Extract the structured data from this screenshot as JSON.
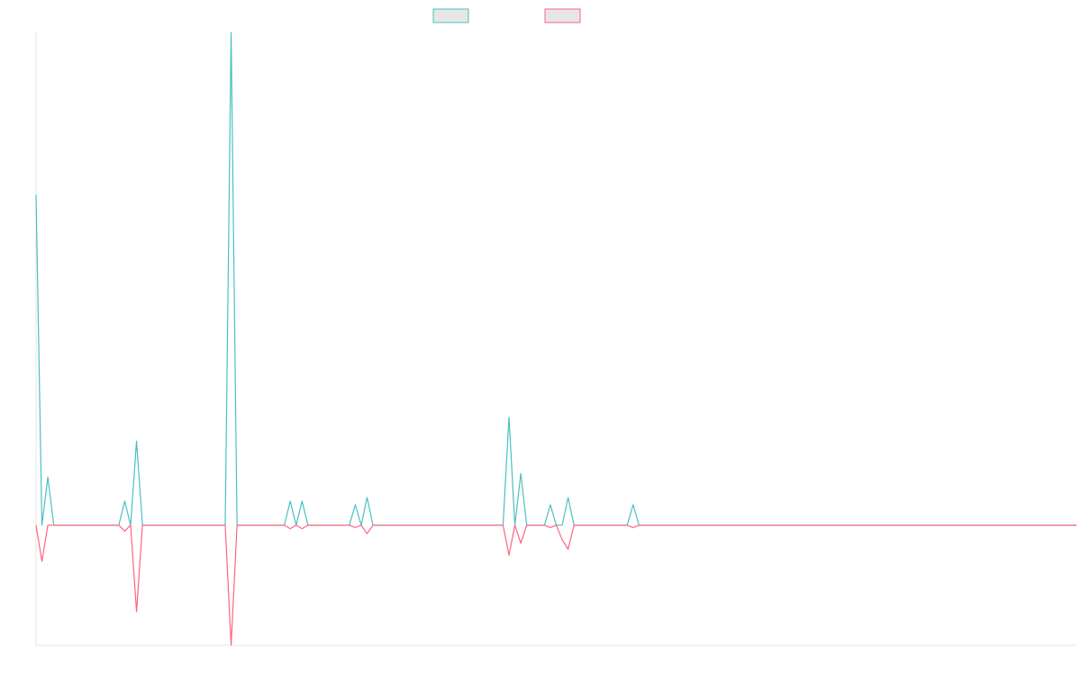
{
  "chart_data": {
    "type": "line",
    "title": "",
    "xlabel": "",
    "ylabel": "",
    "grid": false,
    "legend_position": "top-center",
    "xlim": [
      0,
      176
    ],
    "ylim": [
      -1.0,
      4.1
    ],
    "series": [
      {
        "color": "#4bc0c0",
        "fill": "#e6e6e6",
        "values": [
          2.75,
          0,
          0.4,
          0,
          0,
          0,
          0,
          0,
          0,
          0,
          0,
          0,
          0,
          0,
          0,
          0.2,
          0,
          0.7,
          0,
          0,
          0,
          0,
          0,
          0,
          0,
          0,
          0,
          0,
          0,
          0,
          0,
          0,
          0,
          4.1,
          0,
          0,
          0,
          0,
          0,
          0,
          0,
          0,
          0,
          0.2,
          0,
          0.2,
          0,
          0,
          0,
          0,
          0,
          0,
          0,
          0,
          0.17,
          0,
          0.23,
          0,
          0,
          0,
          0,
          0,
          0,
          0,
          0,
          0,
          0,
          0,
          0,
          0,
          0,
          0,
          0,
          0,
          0,
          0,
          0,
          0,
          0,
          0,
          0.9,
          0,
          0.43,
          0,
          0,
          0,
          0,
          0.17,
          0,
          0,
          0.23,
          0,
          0,
          0,
          0,
          0,
          0,
          0,
          0,
          0,
          0,
          0.17,
          0,
          0,
          0,
          0,
          0,
          0,
          0,
          0,
          0,
          0,
          0,
          0,
          0,
          0,
          0,
          0,
          0,
          0,
          0,
          0,
          0,
          0,
          0,
          0,
          0,
          0,
          0,
          0,
          0,
          0,
          0,
          0,
          0,
          0,
          0,
          0,
          0,
          0,
          0,
          0,
          0,
          0,
          0,
          0,
          0,
          0,
          0,
          0,
          0,
          0,
          0,
          0,
          0,
          0,
          0,
          0,
          0,
          0,
          0,
          0,
          0,
          0,
          0,
          0,
          0,
          0,
          0,
          0,
          0,
          0,
          0,
          0,
          0,
          0,
          0
        ]
      },
      {
        "color": "#ff6384",
        "fill": "#e6e6e6",
        "values": [
          0,
          -0.3,
          0,
          0,
          0,
          0,
          0,
          0,
          0,
          0,
          0,
          0,
          0,
          0,
          0,
          -0.05,
          0,
          -0.72,
          0,
          0,
          0,
          0,
          0,
          0,
          0,
          0,
          0,
          0,
          0,
          0,
          0,
          0,
          0,
          -1.0,
          0,
          0,
          0,
          0,
          0,
          0,
          0,
          0,
          0,
          -0.03,
          0,
          -0.03,
          0,
          0,
          0,
          0,
          0,
          0,
          0,
          0,
          -0.02,
          0,
          -0.07,
          0,
          0,
          0,
          0,
          0,
          0,
          0,
          0,
          0,
          0,
          0,
          0,
          0,
          0,
          0,
          0,
          0,
          0,
          0,
          0,
          0,
          0,
          0,
          -0.25,
          0,
          -0.15,
          0,
          0,
          0,
          0,
          -0.02,
          0,
          -0.12,
          -0.2,
          0,
          0,
          0,
          0,
          0,
          0,
          0,
          0,
          0,
          0,
          -0.02,
          0,
          0,
          0,
          0,
          0,
          0,
          0,
          0,
          0,
          0,
          0,
          0,
          0,
          0,
          0,
          0,
          0,
          0,
          0,
          0,
          0,
          0,
          0,
          0,
          0,
          0,
          0,
          0,
          0,
          0,
          0,
          0,
          0,
          0,
          0,
          0,
          0,
          0,
          0,
          0,
          0,
          0,
          0,
          0,
          0,
          0,
          0,
          0,
          0,
          0,
          0,
          0,
          0,
          0,
          0,
          0,
          0,
          0,
          0,
          0,
          0,
          0,
          0,
          0,
          0,
          0,
          0,
          0,
          0,
          0,
          0,
          0,
          0,
          0,
          0
        ]
      }
    ]
  }
}
